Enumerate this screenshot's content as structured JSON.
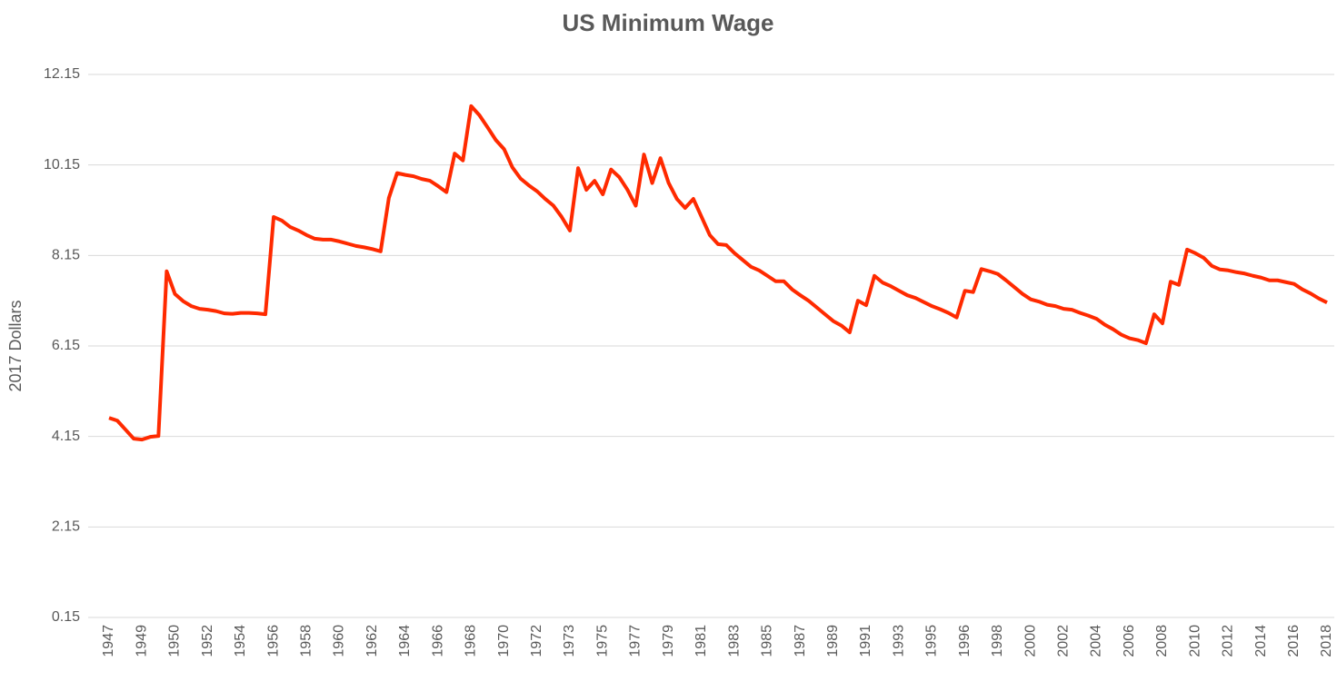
{
  "chart_data": {
    "type": "line",
    "title": "US Minimum Wage",
    "y_label": "2017 Dollars",
    "categories": [
      "1947",
      null,
      null,
      null,
      "1949",
      null,
      null,
      null,
      "1950",
      null,
      null,
      null,
      "1952",
      null,
      null,
      null,
      "1954",
      null,
      null,
      null,
      "1956",
      null,
      null,
      null,
      "1958",
      null,
      null,
      null,
      "1960",
      null,
      null,
      null,
      "1962",
      null,
      null,
      null,
      "1964",
      null,
      null,
      null,
      "1966",
      null,
      null,
      null,
      "1968",
      null,
      null,
      null,
      "1970",
      null,
      null,
      null,
      "1972",
      null,
      null,
      null,
      "1973",
      null,
      null,
      null,
      "1975",
      null,
      null,
      null,
      "1977",
      null,
      null,
      null,
      "1979",
      null,
      null,
      null,
      "1981",
      null,
      null,
      null,
      "1983",
      null,
      null,
      null,
      "1985",
      null,
      null,
      null,
      "1987",
      null,
      null,
      null,
      "1989",
      null,
      null,
      null,
      "1991",
      null,
      null,
      null,
      "1993",
      null,
      null,
      null,
      "1995",
      null,
      null,
      null,
      "1996",
      null,
      null,
      null,
      "1998",
      null,
      null,
      null,
      "2000",
      null,
      null,
      null,
      "2002",
      null,
      null,
      null,
      "2004",
      null,
      null,
      null,
      "2006",
      null,
      null,
      null,
      "2008",
      null,
      null,
      null,
      "2010",
      null,
      null,
      null,
      "2012",
      null,
      null,
      null,
      "2014",
      null,
      null,
      null,
      "2016",
      null,
      null,
      null,
      "2018"
    ],
    "series": [
      {
        "name": "2017 Dollars",
        "color": "#ff2a00",
        "values": [
          4.56,
          4.5,
          4.3,
          4.1,
          4.08,
          4.14,
          4.16,
          7.8,
          7.3,
          7.14,
          7.03,
          6.97,
          6.95,
          6.92,
          6.87,
          6.86,
          6.88,
          6.88,
          6.87,
          6.85,
          9.0,
          8.92,
          8.78,
          8.7,
          8.6,
          8.52,
          8.5,
          8.5,
          8.46,
          8.41,
          8.36,
          8.33,
          8.29,
          8.24,
          9.42,
          9.97,
          9.93,
          9.9,
          9.84,
          9.8,
          9.68,
          9.55,
          10.4,
          10.25,
          11.45,
          11.25,
          10.98,
          10.7,
          10.5,
          10.1,
          9.85,
          9.7,
          9.57,
          9.4,
          9.25,
          9.0,
          8.7,
          10.08,
          9.6,
          9.8,
          9.5,
          10.05,
          9.88,
          9.6,
          9.25,
          10.38,
          9.75,
          10.3,
          9.75,
          9.4,
          9.2,
          9.4,
          9.0,
          8.6,
          8.4,
          8.38,
          8.2,
          8.05,
          7.9,
          7.82,
          7.7,
          7.58,
          7.58,
          7.4,
          7.27,
          7.15,
          7.0,
          6.85,
          6.7,
          6.6,
          6.45,
          7.15,
          7.05,
          7.7,
          7.55,
          7.47,
          7.37,
          7.27,
          7.21,
          7.12,
          7.03,
          6.96,
          6.88,
          6.78,
          7.37,
          7.34,
          7.85,
          7.8,
          7.74,
          7.6,
          7.45,
          7.3,
          7.18,
          7.13,
          7.06,
          7.03,
          6.97,
          6.95,
          6.88,
          6.82,
          6.75,
          6.62,
          6.52,
          6.4,
          6.32,
          6.28,
          6.21,
          6.85,
          6.65,
          7.57,
          7.5,
          8.28,
          8.2,
          8.1,
          7.92,
          7.84,
          7.82,
          7.78,
          7.75,
          7.7,
          7.66,
          7.6,
          7.6,
          7.56,
          7.52,
          7.4,
          7.31,
          7.2,
          7.11
        ]
      }
    ],
    "ylim": [
      0.15,
      12.15
    ],
    "yticks": [
      0.15,
      2.15,
      4.15,
      6.15,
      8.15,
      10.15,
      12.15
    ],
    "grid": true
  }
}
